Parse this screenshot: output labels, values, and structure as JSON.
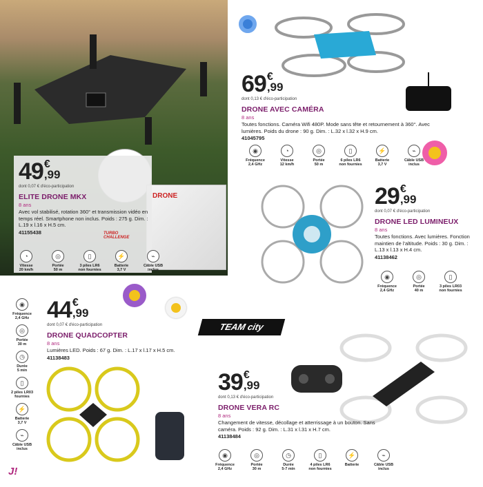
{
  "colors": {
    "title": "#7b1d6a",
    "age": "#b0287e"
  },
  "brand": {
    "team_city": "TEAM city",
    "turbo_challenge": "TURBO CHALLENGE",
    "box_label": "DRONE",
    "corner_logo": "J!"
  },
  "products": [
    {
      "id": "elite",
      "price_int": "49",
      "price_cents": ",99",
      "currency": "€",
      "eco": "dont 0,07 € d'éco-participation",
      "title": "ELITE DRONE MKX",
      "age": "8 ans",
      "desc": "Avec vol stabilisé, rotation 360° et transmission vidéo en temps réel. Smartphone non inclus. Poids : 275 g. Dim. : L.19 x l.16 x H.5 cm.",
      "ref": "41155438",
      "features": [
        {
          "icon": "speedometer-icon",
          "label": "Vitesse\n20 km/h"
        },
        {
          "icon": "range-icon",
          "label": "Portée\n50 m"
        },
        {
          "icon": "battery-cell-icon",
          "label": "3 piles LR6\nnon fournies"
        },
        {
          "icon": "battery-icon",
          "label": "Batterie\n3,7 V"
        },
        {
          "icon": "usb-cable-icon",
          "label": "Câble USB\ninclus"
        }
      ]
    },
    {
      "id": "camera",
      "price_int": "69",
      "price_cents": ",99",
      "currency": "€",
      "eco": "dont 0,13 € d'éco-participation",
      "title": "DRONE AVEC CAMÉRA",
      "age": "8 ans",
      "desc": "Toutes fonctions. Caméra Wifi 480P. Mode sans tête et retournement à 360°. Avec lumières. Poids du drone : 90 g. Dim. : L.32 x l.32 x H.9 cm.",
      "ref": "41045795",
      "features": [
        {
          "icon": "frequency-icon",
          "label": "Fréquence\n2,4 GHz"
        },
        {
          "icon": "speedometer-icon",
          "label": "Vitesse\n12 km/h"
        },
        {
          "icon": "range-icon",
          "label": "Portée\n50 m"
        },
        {
          "icon": "battery-cell-icon",
          "label": "6 piles LR6\nnon fournies"
        },
        {
          "icon": "battery-icon",
          "label": "Batterie\n3,7 V"
        },
        {
          "icon": "usb-cable-icon",
          "label": "Câble USB\ninclus"
        }
      ]
    },
    {
      "id": "led",
      "price_int": "29",
      "price_cents": ",99",
      "currency": "€",
      "eco": "dont 0,07 € d'éco-participation",
      "title": "DRONE LED LUMINEUX",
      "age": "8 ans",
      "desc": "Toutes fonctions. Avec lumières. Fonction maintien de l'altitude. Poids : 30 g. Dim. : L.13 x l.13 x H.4 cm.",
      "ref": "41138462",
      "features": [
        {
          "icon": "frequency-icon",
          "label": "Fréquence\n2,4 GHz"
        },
        {
          "icon": "range-icon",
          "label": "Portée\n40 m"
        },
        {
          "icon": "battery-cell-icon",
          "label": "3 piles LR03\nnon fournies"
        }
      ]
    },
    {
      "id": "quad",
      "price_int": "44",
      "price_cents": ",99",
      "currency": "€",
      "eco": "dont 0,07 € d'éco-participation",
      "title": "DRONE QUADCOPTER",
      "age": "8 ans",
      "desc": "Lumières LED. Poids : 67 g. Dim. : L.17 x l.17 x H.5 cm.",
      "ref": "41138483",
      "features": [
        {
          "icon": "frequency-icon",
          "label": "Fréquence\n2,4 GHz"
        },
        {
          "icon": "range-icon",
          "label": "Portée\n30 m"
        },
        {
          "icon": "timer-icon",
          "label": "Durée\n5 min"
        },
        {
          "icon": "battery-cell-icon",
          "label": "2 piles LR03\nfournies"
        },
        {
          "icon": "battery-icon",
          "label": "Batterie\n3,7 V"
        },
        {
          "icon": "usb-cable-icon",
          "label": "Câble USB\ninclus"
        }
      ]
    },
    {
      "id": "vera",
      "price_int": "39",
      "price_cents": ",99",
      "currency": "€",
      "eco": "dont 0,13 € d'éco-participation",
      "title": "DRONE VERA RC",
      "age": "8 ans",
      "desc": "Changement de vitesse, décollage et atterrissage à un bouton. Sans caméra. Poids : 92 g. Dim. : L.31 x l.31 x H.7 cm.",
      "ref": "41138484",
      "features": [
        {
          "icon": "frequency-icon",
          "label": "Fréquence\n2,4 GHz"
        },
        {
          "icon": "range-icon",
          "label": "Portée\n30 m"
        },
        {
          "icon": "timer-icon",
          "label": "Durée\n5-7 min"
        },
        {
          "icon": "battery-cell-icon",
          "label": "4 piles LR6\nnon fournies"
        },
        {
          "icon": "battery-icon",
          "label": "Batterie"
        },
        {
          "icon": "usb-cable-icon",
          "label": "Câble USB\ninclus"
        }
      ]
    }
  ]
}
